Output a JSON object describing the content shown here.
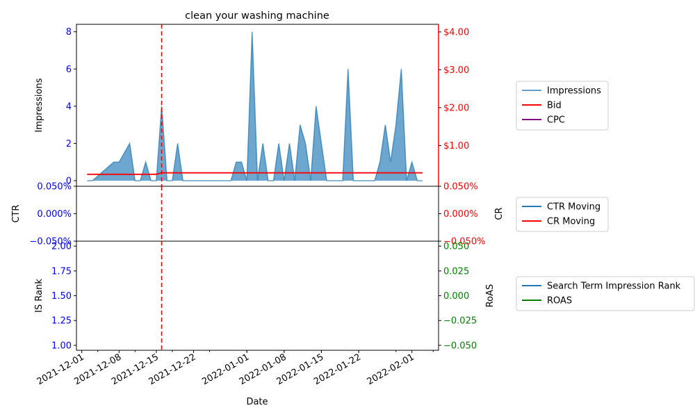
{
  "chart_data": {
    "type": "area",
    "title": "clean your washing machine",
    "xlabel": "Date",
    "x_ticks": [
      "2021-12-01",
      "2021-12-08",
      "2021-12-15",
      "2021-12-22",
      "2022-01-01",
      "2022-01-08",
      "2022-01-15",
      "2022-01-22",
      "2022-02-01"
    ],
    "marker_date": "2021-12-16",
    "marker_color": "#ff0000",
    "panels": [
      {
        "name": "impressions",
        "left_axis": {
          "label": "Impressions",
          "ticks": [
            "0",
            "2",
            "4",
            "6",
            "8"
          ],
          "range": [
            -0.3,
            8.4
          ],
          "color": "#0000ff"
        },
        "right_axis": {
          "label": "",
          "ticks": [
            "$1.00",
            "$2.00",
            "$3.00",
            "$4.00"
          ],
          "range": [
            -0.075,
            4.2
          ],
          "color": "#ff0000"
        },
        "series": [
          {
            "name": "Impressions",
            "type": "area",
            "color": "#1f77b4",
            "axis": "left",
            "points": [
              [
                "2021-12-02",
                0
              ],
              [
                "2021-12-03",
                0
              ],
              [
                "2021-12-07",
                1
              ],
              [
                "2021-12-08",
                1
              ],
              [
                "2021-12-10",
                2
              ],
              [
                "2021-12-11",
                0
              ],
              [
                "2021-12-12",
                0
              ],
              [
                "2021-12-13",
                1
              ],
              [
                "2021-12-14",
                0
              ],
              [
                "2021-12-15",
                0
              ],
              [
                "2021-12-16",
                4
              ],
              [
                "2021-12-17",
                0
              ],
              [
                "2021-12-18",
                0
              ],
              [
                "2021-12-19",
                2
              ],
              [
                "2021-12-20",
                0
              ],
              [
                "2021-12-29",
                0
              ],
              [
                "2021-12-30",
                1
              ],
              [
                "2021-12-31",
                1
              ],
              [
                "2022-01-01",
                0
              ],
              [
                "2022-01-02",
                8
              ],
              [
                "2022-01-03",
                0
              ],
              [
                "2022-01-04",
                2
              ],
              [
                "2022-01-05",
                0
              ],
              [
                "2022-01-06",
                0
              ],
              [
                "2022-01-07",
                2
              ],
              [
                "2022-01-08",
                0
              ],
              [
                "2022-01-09",
                2
              ],
              [
                "2022-01-10",
                0
              ],
              [
                "2022-01-11",
                3
              ],
              [
                "2022-01-12",
                2
              ],
              [
                "2022-01-13",
                0
              ],
              [
                "2022-01-14",
                4
              ],
              [
                "2022-01-15",
                2
              ],
              [
                "2022-01-16",
                0
              ],
              [
                "2022-01-19",
                0
              ],
              [
                "2022-01-20",
                6
              ],
              [
                "2022-01-21",
                0
              ],
              [
                "2022-01-25",
                0
              ],
              [
                "2022-01-26",
                1
              ],
              [
                "2022-01-27",
                3
              ],
              [
                "2022-01-28",
                1
              ],
              [
                "2022-01-29",
                3
              ],
              [
                "2022-01-30",
                6
              ],
              [
                "2022-01-31",
                0
              ],
              [
                "2022-02-01",
                1
              ],
              [
                "2022-02-02",
                0
              ],
              [
                "2022-02-03",
                0
              ]
            ]
          },
          {
            "name": "Bid",
            "type": "line",
            "color": "#ff0000",
            "axis": "right",
            "points": [
              [
                "2021-12-02",
                0.24
              ],
              [
                "2021-12-15",
                0.24
              ],
              [
                "2021-12-16",
                0.28
              ],
              [
                "2022-02-03",
                0.28
              ]
            ]
          },
          {
            "name": "CPC",
            "type": "line",
            "color": "#800080",
            "axis": "right",
            "points": []
          }
        ],
        "legend": [
          "Impressions",
          "Bid",
          "CPC"
        ]
      },
      {
        "name": "rates",
        "left_axis": {
          "label": "CTR",
          "ticks": [
            "−0.050%",
            "0.000%",
            "0.050%"
          ],
          "range": [
            -0.05,
            0.05
          ],
          "color": "#0000ff"
        },
        "right_axis": {
          "label": "CR",
          "ticks": [
            "−0.050%",
            "0.000%",
            "0.050%"
          ],
          "range": [
            -0.05,
            0.05
          ],
          "color": "#ff0000"
        },
        "series": [
          {
            "name": "CTR Moving",
            "color": "#1f77b4",
            "points": []
          },
          {
            "name": "CR Moving",
            "color": "#ff0000",
            "points": []
          }
        ],
        "legend": [
          "CTR Moving",
          "CR Moving"
        ]
      },
      {
        "name": "rank",
        "left_axis": {
          "label": "IS Rank",
          "ticks": [
            "1.00",
            "1.25",
            "1.50",
            "1.75",
            "2.00"
          ],
          "range": [
            0.95,
            2.05
          ],
          "color": "#0000ff"
        },
        "right_axis": {
          "label": "RoAS",
          "ticks": [
            "−0.050",
            "−0.025",
            "0.000",
            "0.025",
            "0.050"
          ],
          "range": [
            -0.055,
            0.055
          ],
          "color": "#008000"
        },
        "series": [
          {
            "name": "Search Term Impression Rank",
            "color": "#1f77b4",
            "points": []
          },
          {
            "name": "ROAS",
            "color": "#008000",
            "points": []
          }
        ],
        "legend": [
          "Search Term Impression Rank",
          "ROAS"
        ]
      }
    ]
  }
}
